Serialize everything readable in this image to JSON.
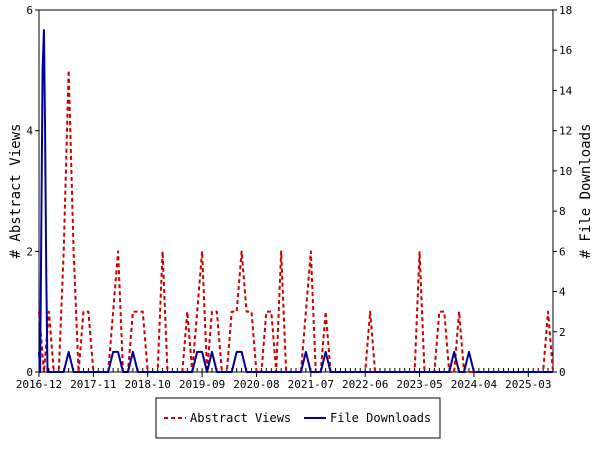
{
  "chart_data": {
    "type": "line",
    "title": "",
    "xlabel": "",
    "ylabel_left": "# Abstract Views",
    "ylabel_right": "# File Downloads",
    "ylim_left": [
      0,
      6
    ],
    "ylim_right": [
      0,
      18
    ],
    "yticks_left": [
      "0",
      "2",
      "4",
      "6"
    ],
    "yticks_right": [
      "0",
      "2",
      "4",
      "6",
      "8",
      "10",
      "12",
      "14",
      "16",
      "18"
    ],
    "x_range": [
      "2016-12",
      "2025-08"
    ],
    "x_ticks": [
      "2016-12",
      "2017-11",
      "2018-10",
      "2019-09",
      "2020-08",
      "2021-07",
      "2022-06",
      "2023-05",
      "2024-04",
      "2025-03"
    ],
    "grid": false,
    "legend_position": "bottom",
    "series": [
      {
        "name": "Abstract Views",
        "axis": "left",
        "color": "#cc0000",
        "style": "dashed",
        "points": [
          [
            "2016-12",
            1
          ],
          [
            "2017-01",
            0
          ],
          [
            "2017-02",
            1
          ],
          [
            "2017-03",
            0
          ],
          [
            "2017-04",
            0
          ],
          [
            "2017-05",
            2
          ],
          [
            "2017-06",
            5
          ],
          [
            "2017-07",
            2
          ],
          [
            "2017-08",
            0
          ],
          [
            "2017-09",
            1
          ],
          [
            "2017-10",
            1
          ],
          [
            "2017-11",
            0
          ],
          [
            "2017-12",
            0
          ],
          [
            "2018-01",
            0
          ],
          [
            "2018-02",
            0
          ],
          [
            "2018-03",
            1
          ],
          [
            "2018-04",
            2
          ],
          [
            "2018-05",
            0
          ],
          [
            "2018-06",
            0
          ],
          [
            "2018-07",
            1
          ],
          [
            "2018-08",
            1
          ],
          [
            "2018-09",
            1
          ],
          [
            "2018-10",
            0
          ],
          [
            "2018-11",
            0
          ],
          [
            "2018-12",
            0
          ],
          [
            "2019-01",
            2
          ],
          [
            "2019-02",
            0
          ],
          [
            "2019-03",
            0
          ],
          [
            "2019-04",
            0
          ],
          [
            "2019-05",
            0
          ],
          [
            "2019-06",
            1
          ],
          [
            "2019-07",
            0
          ],
          [
            "2019-08",
            1
          ],
          [
            "2019-09",
            2
          ],
          [
            "2019-10",
            0
          ],
          [
            "2019-11",
            1
          ],
          [
            "2019-12",
            1
          ],
          [
            "2020-01",
            0
          ],
          [
            "2020-02",
            0
          ],
          [
            "2020-03",
            1
          ],
          [
            "2020-04",
            1
          ],
          [
            "2020-05",
            2
          ],
          [
            "2020-06",
            1
          ],
          [
            "2020-07",
            1
          ],
          [
            "2020-08",
            0
          ],
          [
            "2020-09",
            0
          ],
          [
            "2020-10",
            1
          ],
          [
            "2020-11",
            1
          ],
          [
            "2020-12",
            0
          ],
          [
            "2021-01",
            2
          ],
          [
            "2021-02",
            0
          ],
          [
            "2021-03",
            0
          ],
          [
            "2021-04",
            0
          ],
          [
            "2021-05",
            0
          ],
          [
            "2021-06",
            1
          ],
          [
            "2021-07",
            2
          ],
          [
            "2021-08",
            0
          ],
          [
            "2021-09",
            0
          ],
          [
            "2021-10",
            1
          ],
          [
            "2021-11",
            0
          ],
          [
            "2021-12",
            0
          ],
          [
            "2022-01",
            0
          ],
          [
            "2022-02",
            0
          ],
          [
            "2022-03",
            0
          ],
          [
            "2022-04",
            0
          ],
          [
            "2022-05",
            0
          ],
          [
            "2022-06",
            0
          ],
          [
            "2022-07",
            1
          ],
          [
            "2022-08",
            0
          ],
          [
            "2022-09",
            0
          ],
          [
            "2022-10",
            0
          ],
          [
            "2022-11",
            0
          ],
          [
            "2022-12",
            0
          ],
          [
            "2023-01",
            0
          ],
          [
            "2023-02",
            0
          ],
          [
            "2023-03",
            0
          ],
          [
            "2023-04",
            0
          ],
          [
            "2023-05",
            2
          ],
          [
            "2023-06",
            0
          ],
          [
            "2023-07",
            0
          ],
          [
            "2023-08",
            0
          ],
          [
            "2023-09",
            1
          ],
          [
            "2023-10",
            1
          ],
          [
            "2023-11",
            0
          ],
          [
            "2023-12",
            0
          ],
          [
            "2024-01",
            1
          ],
          [
            "2024-02",
            0
          ],
          [
            "2024-03",
            0
          ],
          [
            "2024-04",
            0
          ],
          [
            "2024-05",
            0
          ],
          [
            "2024-06",
            0
          ],
          [
            "2024-07",
            0
          ],
          [
            "2024-08",
            0
          ],
          [
            "2024-09",
            0
          ],
          [
            "2024-10",
            0
          ],
          [
            "2024-11",
            0
          ],
          [
            "2024-12",
            0
          ],
          [
            "2025-01",
            0
          ],
          [
            "2025-02",
            0
          ],
          [
            "2025-03",
            0
          ],
          [
            "2025-04",
            0
          ],
          [
            "2025-05",
            0
          ],
          [
            "2025-06",
            0
          ],
          [
            "2025-07",
            1
          ],
          [
            "2025-08",
            0
          ]
        ]
      },
      {
        "name": "File Downloads",
        "axis": "right",
        "color": "#000099",
        "style": "solid",
        "points": [
          [
            "2016-12",
            1
          ],
          [
            "2016-12-08",
            0
          ],
          [
            "2016-12-16",
            8
          ],
          [
            "2016-12-23",
            15
          ],
          [
            "2017-01",
            17
          ],
          [
            "2017-01-08",
            12
          ],
          [
            "2017-01-15",
            5
          ],
          [
            "2017-01-23",
            0
          ],
          [
            "2017-02",
            0
          ],
          [
            "2017-03",
            0
          ],
          [
            "2017-04",
            0
          ],
          [
            "2017-05",
            0
          ],
          [
            "2017-06",
            1
          ],
          [
            "2017-07",
            0
          ],
          [
            "2017-08",
            0
          ],
          [
            "2017-09",
            0
          ],
          [
            "2017-10",
            0
          ],
          [
            "2017-11",
            0
          ],
          [
            "2017-12",
            0
          ],
          [
            "2018-01",
            0
          ],
          [
            "2018-02",
            0
          ],
          [
            "2018-03",
            1
          ],
          [
            "2018-04",
            1
          ],
          [
            "2018-05",
            0
          ],
          [
            "2018-06",
            0
          ],
          [
            "2018-07",
            1
          ],
          [
            "2018-08",
            0
          ],
          [
            "2018-09",
            0
          ],
          [
            "2018-10",
            0
          ],
          [
            "2018-11",
            0
          ],
          [
            "2018-12",
            0
          ],
          [
            "2019-01",
            0
          ],
          [
            "2019-02",
            0
          ],
          [
            "2019-03",
            0
          ],
          [
            "2019-04",
            0
          ],
          [
            "2019-05",
            0
          ],
          [
            "2019-06",
            0
          ],
          [
            "2019-07",
            0
          ],
          [
            "2019-08",
            1
          ],
          [
            "2019-09",
            1
          ],
          [
            "2019-10",
            0
          ],
          [
            "2019-11",
            1
          ],
          [
            "2019-12",
            0
          ],
          [
            "2020-01",
            0
          ],
          [
            "2020-02",
            0
          ],
          [
            "2020-03",
            0
          ],
          [
            "2020-04",
            1
          ],
          [
            "2020-05",
            1
          ],
          [
            "2020-06",
            0
          ],
          [
            "2020-07",
            0
          ],
          [
            "2020-08",
            0
          ],
          [
            "2020-09",
            0
          ],
          [
            "2020-10",
            0
          ],
          [
            "2020-11",
            0
          ],
          [
            "2020-12",
            0
          ],
          [
            "2021-01",
            0
          ],
          [
            "2021-02",
            0
          ],
          [
            "2021-03",
            0
          ],
          [
            "2021-04",
            0
          ],
          [
            "2021-05",
            0
          ],
          [
            "2021-06",
            1
          ],
          [
            "2021-07",
            0
          ],
          [
            "2021-08",
            0
          ],
          [
            "2021-09",
            0
          ],
          [
            "2021-10",
            1
          ],
          [
            "2021-11",
            0
          ],
          [
            "2021-12",
            0
          ],
          [
            "2022-01",
            0
          ],
          [
            "2022-02",
            0
          ],
          [
            "2022-03",
            0
          ],
          [
            "2022-04",
            0
          ],
          [
            "2022-05",
            0
          ],
          [
            "2022-06",
            0
          ],
          [
            "2022-07",
            0
          ],
          [
            "2022-08",
            0
          ],
          [
            "2022-09",
            0
          ],
          [
            "2022-10",
            0
          ],
          [
            "2022-11",
            0
          ],
          [
            "2022-12",
            0
          ],
          [
            "2023-01",
            0
          ],
          [
            "2023-02",
            0
          ],
          [
            "2023-03",
            0
          ],
          [
            "2023-04",
            0
          ],
          [
            "2023-05",
            0
          ],
          [
            "2023-06",
            0
          ],
          [
            "2023-07",
            0
          ],
          [
            "2023-08",
            0
          ],
          [
            "2023-09",
            0
          ],
          [
            "2023-10",
            0
          ],
          [
            "2023-11",
            0
          ],
          [
            "2023-12",
            1
          ],
          [
            "2024-01",
            0
          ],
          [
            "2024-02",
            0
          ],
          [
            "2024-03",
            1
          ],
          [
            "2024-04",
            0
          ],
          [
            "2024-05",
            0
          ],
          [
            "2024-06",
            0
          ],
          [
            "2024-07",
            0
          ],
          [
            "2024-08",
            0
          ],
          [
            "2024-09",
            0
          ],
          [
            "2024-10",
            0
          ],
          [
            "2024-11",
            0
          ],
          [
            "2024-12",
            0
          ],
          [
            "2025-01",
            0
          ],
          [
            "2025-02",
            0
          ],
          [
            "2025-03",
            0
          ],
          [
            "2025-04",
            0
          ],
          [
            "2025-05",
            0
          ],
          [
            "2025-06",
            0
          ],
          [
            "2025-07",
            0
          ],
          [
            "2025-08",
            0
          ]
        ]
      }
    ]
  }
}
